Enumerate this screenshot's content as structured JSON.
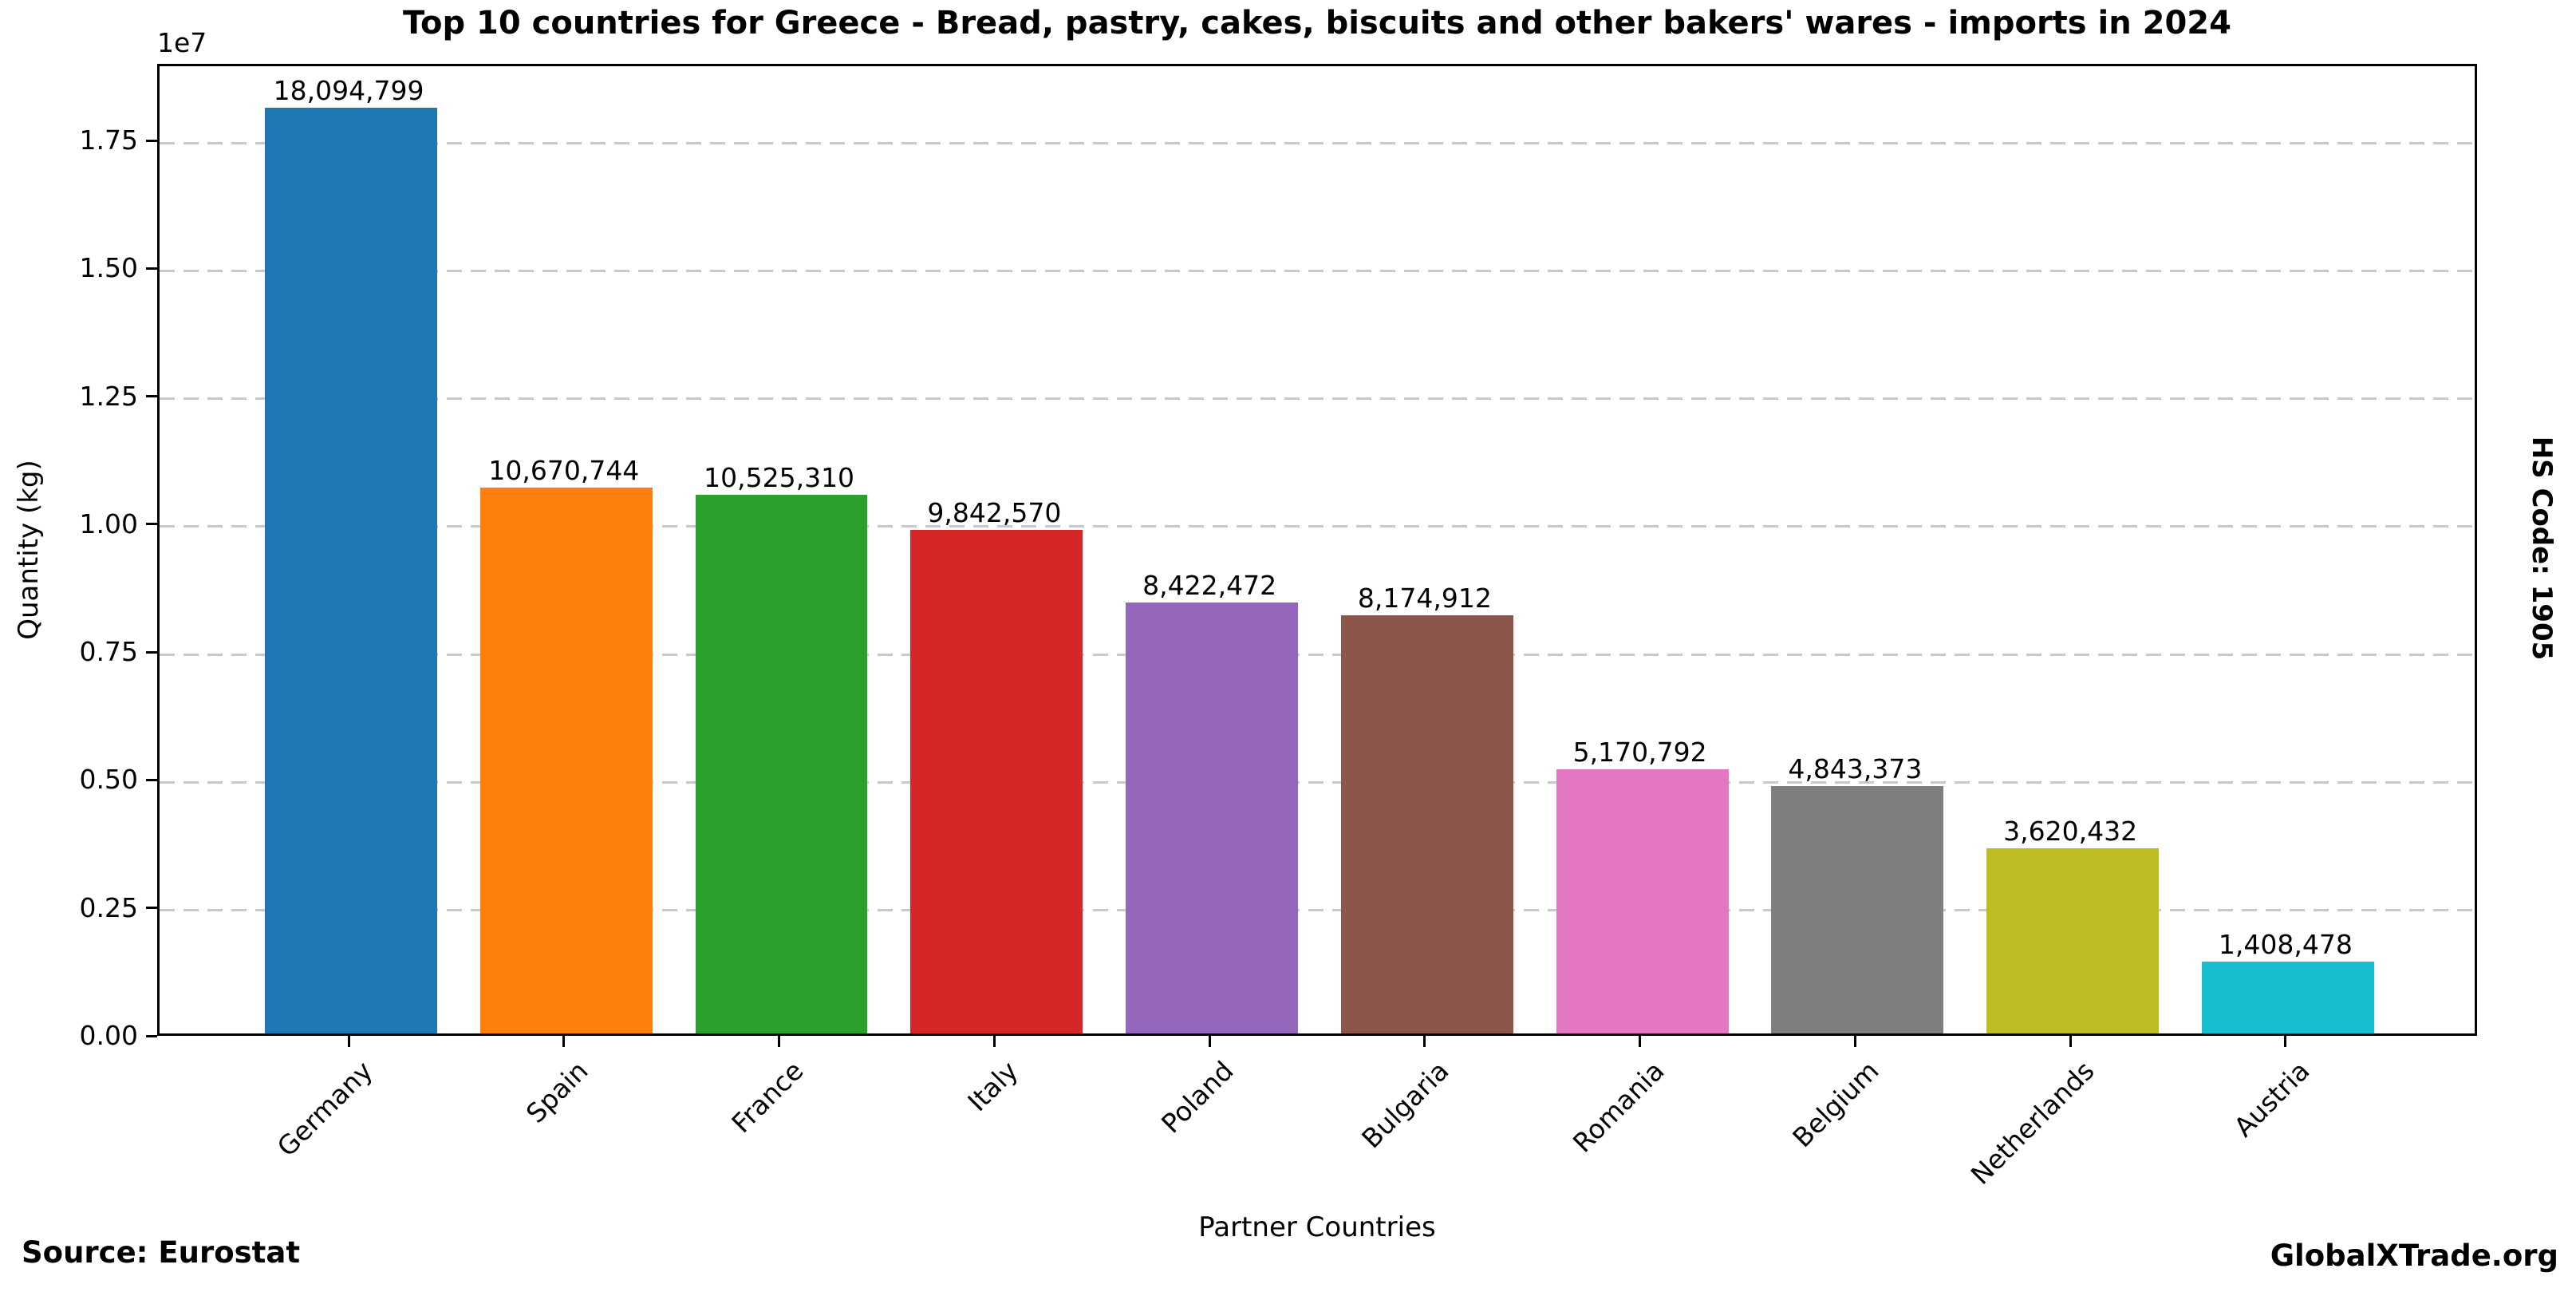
{
  "chart_data": {
    "type": "bar",
    "title": "Top 10 countries for Greece - Bread, pastry, cakes, biscuits and other bakers' wares - imports in 2024",
    "xlabel": "Partner Countries",
    "ylabel": "Quantity (kg)",
    "y_offset_text": "1e7",
    "side_label": "HS Code: 1905",
    "categories": [
      "Germany",
      "Spain",
      "France",
      "Italy",
      "Poland",
      "Bulgaria",
      "Romania",
      "Belgium",
      "Netherlands",
      "Austria"
    ],
    "values": [
      18094799,
      10670744,
      10525310,
      9842570,
      8422472,
      8174912,
      5170792,
      4843373,
      3620432,
      1408478
    ],
    "value_labels": [
      "18,094,799",
      "10,670,744",
      "10,525,310",
      "9,842,570",
      "8,422,472",
      "8,174,912",
      "5,170,792",
      "4,843,373",
      "3,620,432",
      "1,408,478"
    ],
    "bar_colors": [
      "#1f77b4",
      "#ff7f0e",
      "#2ca02c",
      "#d62728",
      "#9467bd",
      "#8c564b",
      "#e377c2",
      "#7f7f7f",
      "#bcbd22",
      "#17becf"
    ],
    "ytick_values": [
      0,
      2500000,
      5000000,
      7500000,
      10000000,
      12500000,
      15000000,
      17500000
    ],
    "ytick_labels": [
      "0.00",
      "0.25",
      "0.50",
      "0.75",
      "1.00",
      "1.25",
      "1.50",
      "1.75"
    ],
    "ylim": [
      0,
      19000000
    ],
    "grid": "horizontal-dashed",
    "legend": "none"
  },
  "footer": {
    "source": "Source: Eurostat",
    "brand": "GlobalXTrade.org"
  }
}
